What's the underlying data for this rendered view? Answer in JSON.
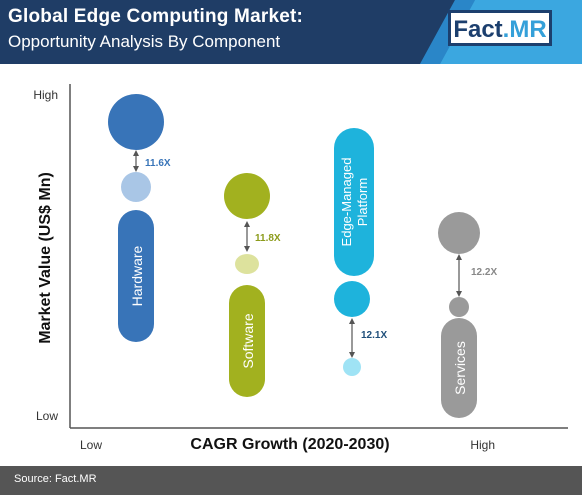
{
  "header": {
    "title": "Global Edge Computing Market:",
    "subtitle": "Opportunity Analysis By Component",
    "logo_part1": "Fact",
    "logo_part2": ".MR"
  },
  "footer": {
    "source": "Source: Fact.MR"
  },
  "colors": {
    "header_dark": "#1f3d66",
    "header_mid": "#1b67a6",
    "header_light": "#3ba7e0",
    "footer": "#555555",
    "hardware": "#3874b8",
    "software": "#a2b11f",
    "edge_managed_platform": "#1eb3dc",
    "services": "#9a9a9a"
  },
  "chart_data": {
    "type": "bubble-comparison",
    "xlabel": "CAGR Growth (2020-2030)",
    "ylabel": "Market Value (US$ Mn)",
    "x_ticks": [
      "Low",
      "High"
    ],
    "y_ticks": [
      "High",
      "Low"
    ],
    "categories": [
      {
        "key": "hardware",
        "name": "Hardware",
        "growth_multiple": "11.6X"
      },
      {
        "key": "software",
        "name": "Software",
        "growth_multiple": "11.8X"
      },
      {
        "key": "edge_managed_platform",
        "name": "Edge-Managed Platform",
        "name_lines": [
          "Edge-Managed",
          "Platform"
        ],
        "growth_multiple": "12.1X"
      },
      {
        "key": "services",
        "name": "Services",
        "growth_multiple": "12.2X"
      }
    ]
  }
}
